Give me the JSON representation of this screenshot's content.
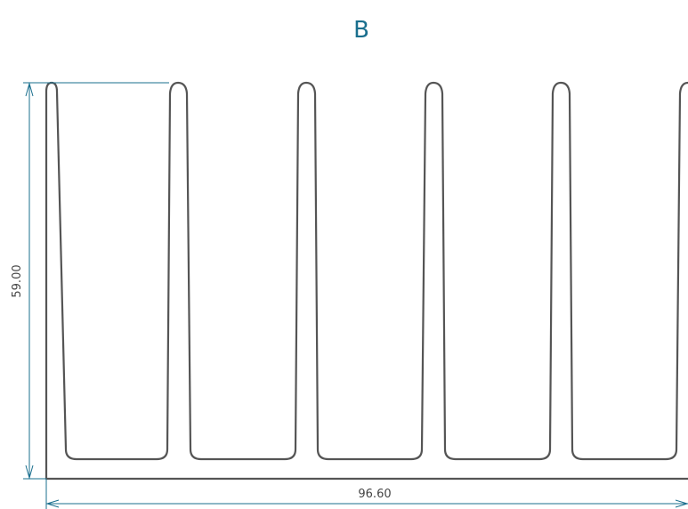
{
  "drawing": {
    "section_label": "B",
    "height_dimension": "59.00",
    "width_dimension": "96.60",
    "colors": {
      "outline": "#555555",
      "dimension": "#1a6f8e",
      "label": "#1a6f8e",
      "text": "#444444"
    }
  }
}
